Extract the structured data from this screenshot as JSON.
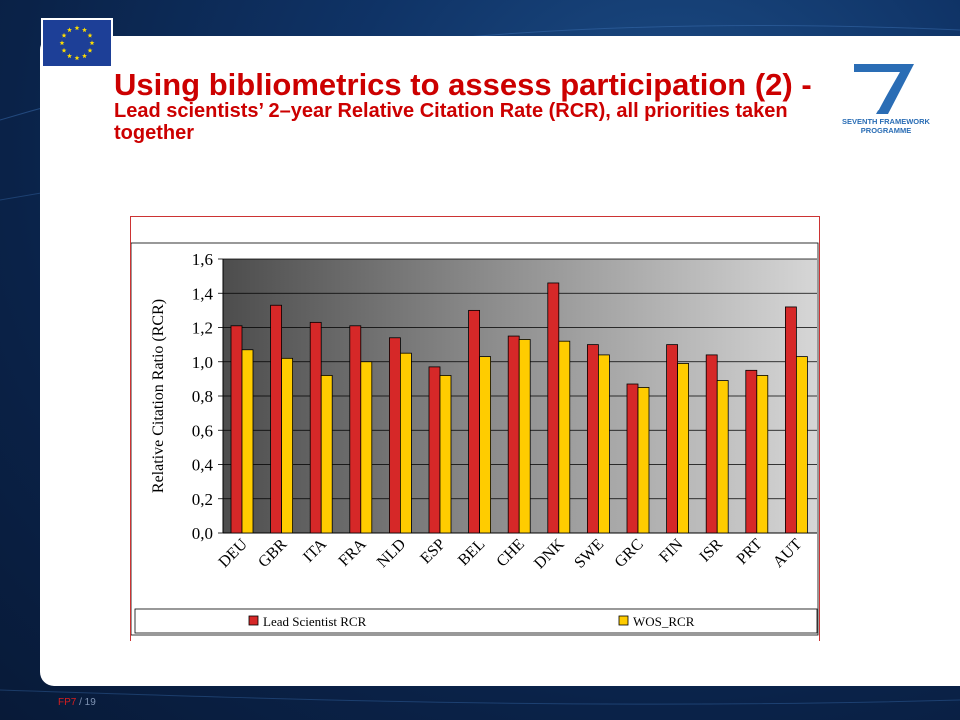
{
  "slide": {
    "title_big": "Using bibliometrics to assess participation (2) - ",
    "title_small": "Lead scientists’ 2–year Relative Citation Rate (RCR), all priorities taken together",
    "logo_text_line1": "SEVENTH FRAMEWORK",
    "logo_text_line2": "PROGRAMME",
    "footer_fp": "FP",
    "footer_num": "7",
    "footer_page": " / 19",
    "colors": {
      "title": "#cc0000",
      "eu_blue": "#1d3f97",
      "eu_star": "#ffdd00",
      "logo_blue": "#2a6db5"
    }
  },
  "chart_data": {
    "type": "bar",
    "ylabel": "Relative Citation Ratio (RCR)",
    "xlabel": "",
    "ylim": [
      0,
      1.6
    ],
    "yticks": [
      "0,0",
      "0,2",
      "0,4",
      "0,6",
      "0,8",
      "1,0",
      "1,2",
      "1,4",
      "1,6"
    ],
    "grid": true,
    "legend_position": "bottom",
    "categories": [
      "DEU",
      "GBR",
      "ITA",
      "FRA",
      "NLD",
      "ESP",
      "BEL",
      "CHE",
      "DNK",
      "SWE",
      "GRC",
      "FIN",
      "ISR",
      "PRT",
      "AUT"
    ],
    "series": [
      {
        "name": "Lead Scientist RCR",
        "color": "#d62828",
        "values": [
          1.21,
          1.33,
          1.23,
          1.21,
          1.14,
          0.97,
          1.3,
          1.15,
          1.46,
          1.1,
          0.87,
          1.1,
          1.04,
          0.95,
          1.32
        ]
      },
      {
        "name": "WOS_RCR",
        "color": "#ffcc00",
        "values": [
          1.07,
          1.02,
          0.92,
          1.0,
          1.05,
          0.92,
          1.03,
          1.13,
          1.12,
          1.04,
          0.85,
          0.99,
          0.89,
          0.92,
          1.03
        ]
      }
    ]
  }
}
